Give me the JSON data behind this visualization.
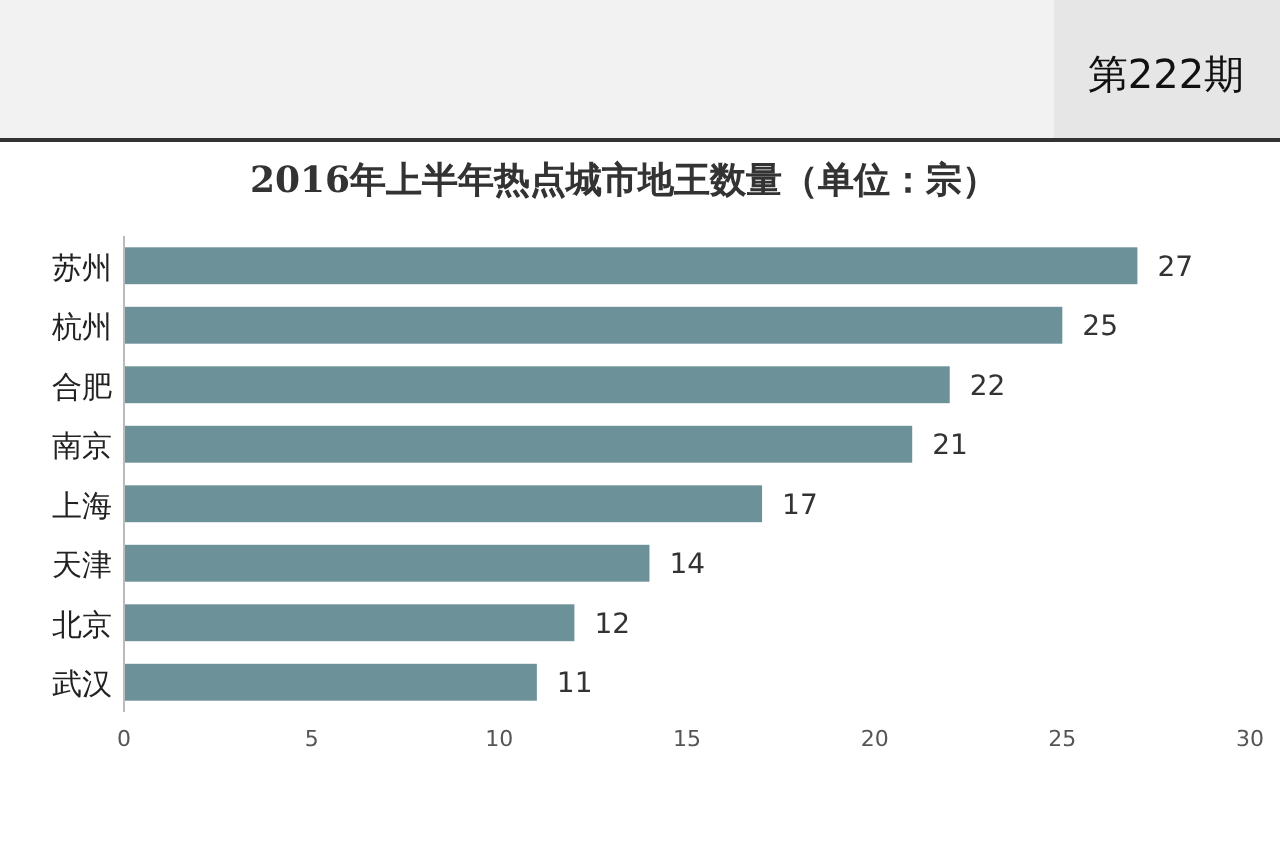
{
  "chart_data": {
    "type": "bar",
    "orientation": "horizontal",
    "title": "2016年上半年热点城市地王数量（单位：宗）",
    "categories": [
      "苏州",
      "杭州",
      "合肥",
      "南京",
      "上海",
      "天津",
      "北京",
      "武汉"
    ],
    "values": [
      27,
      25,
      22,
      21,
      17,
      14,
      12,
      11
    ],
    "color": "#6c9199",
    "xlim": [
      0,
      30
    ],
    "xticks": [
      0,
      5,
      10,
      15,
      20,
      25,
      30
    ],
    "data_labels": true,
    "annotations": [
      "第222期"
    ]
  }
}
